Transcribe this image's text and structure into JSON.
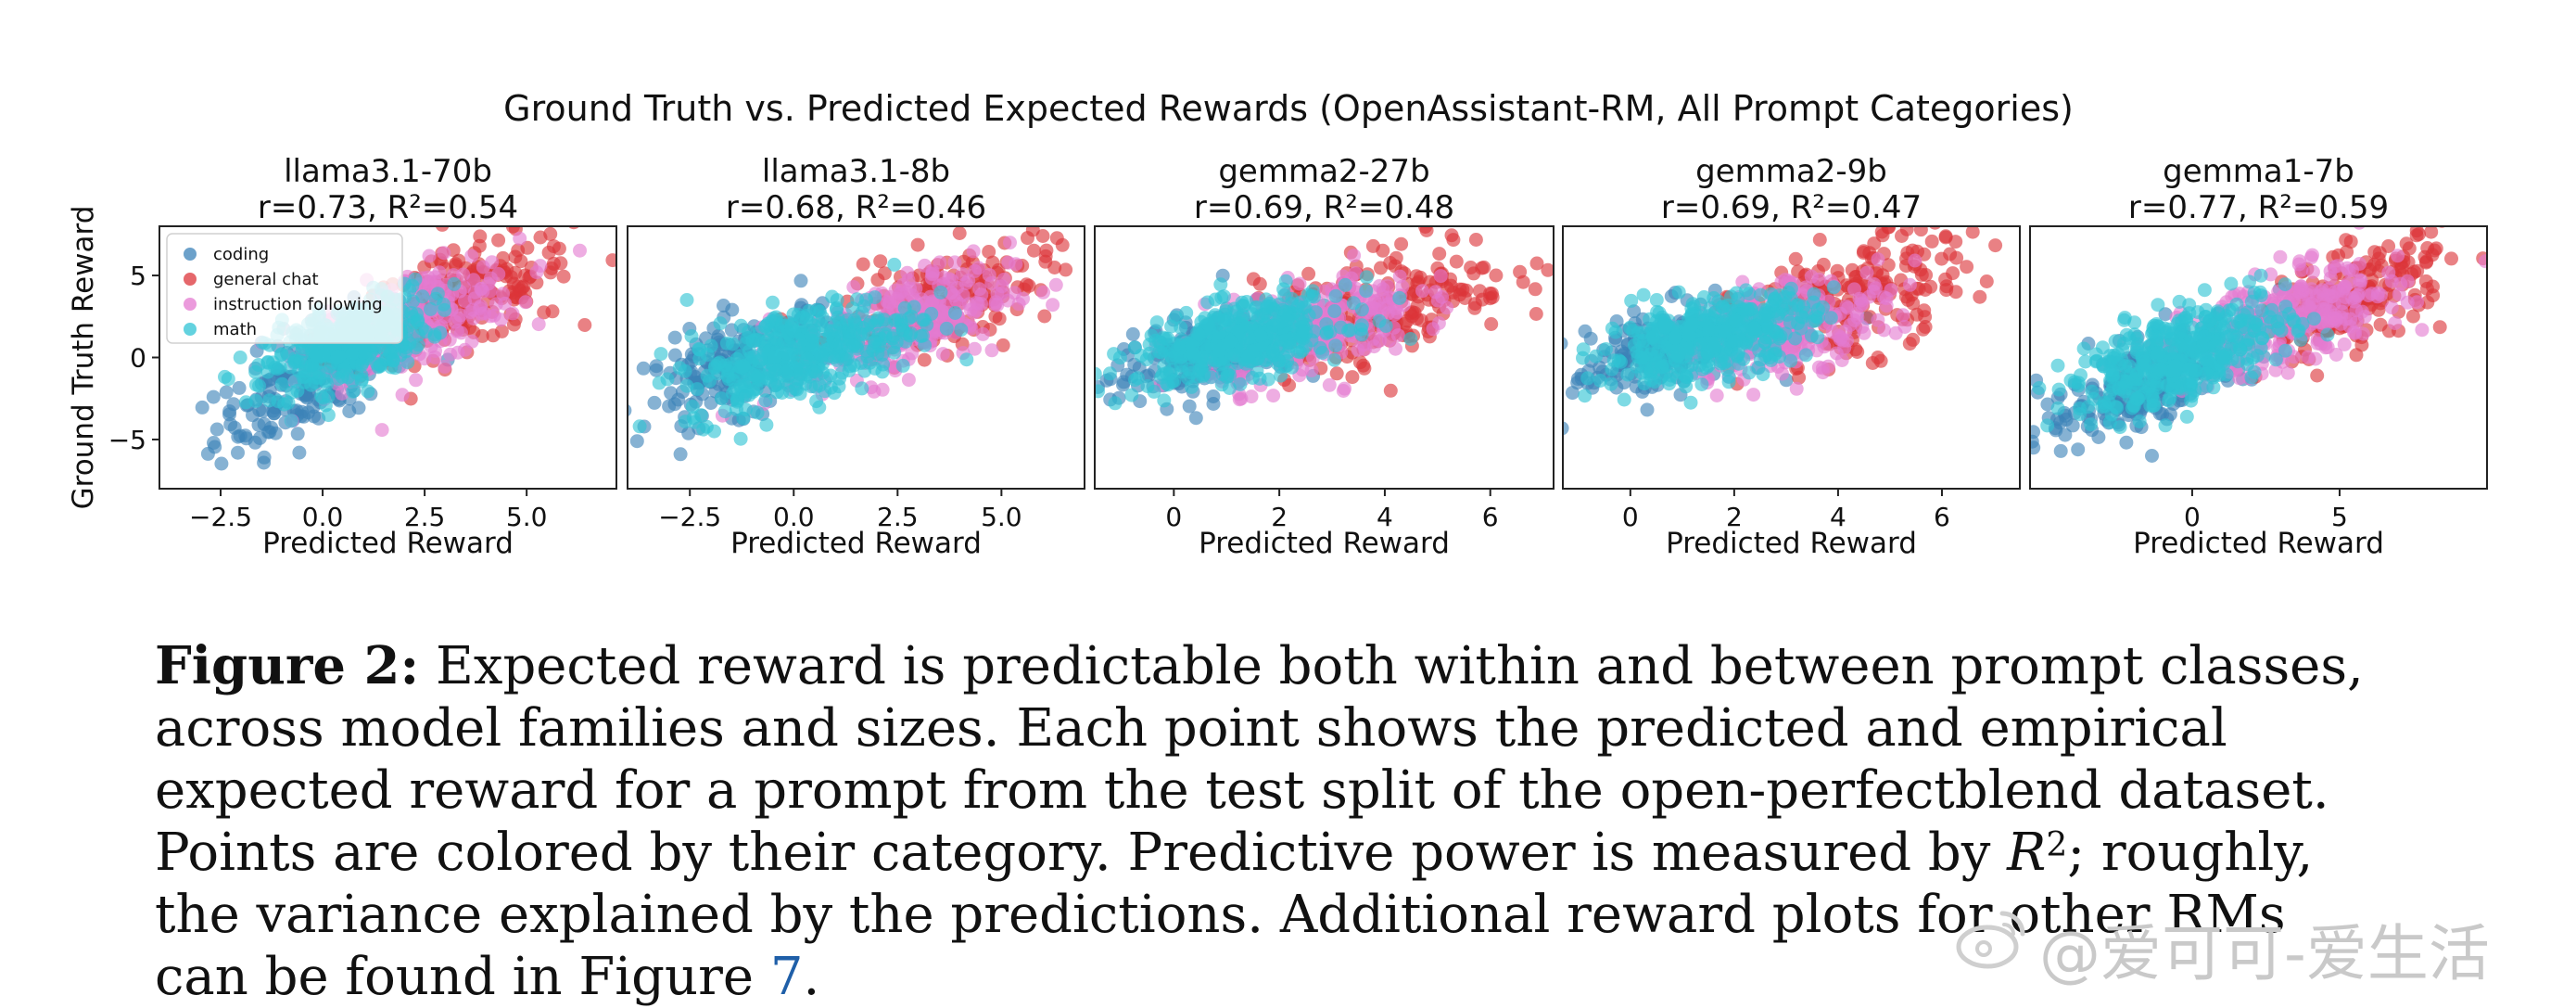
{
  "figure": {
    "suptitle": "Ground Truth vs. Predicted Expected Rewards (OpenAssistant-RM, All Prompt Categories)"
  },
  "caption": {
    "label": "Figure 2:",
    "part1": "Expected reward is predictable both within and between prompt classes, across model families and sizes. Each point shows the predicted and empirical expected reward for a prompt from the test split of the open-perfectblend dataset. Points are colored by their category. Predictive power is measured by",
    "math_symbol": "R",
    "math_sup": "2",
    "part2": "; roughly, the variance explained by the predictions. Additional reward plots for other RMs can be found in Figure",
    "figure_ref": "7",
    "end": "."
  },
  "watermark": {
    "text": "@爱可可-爱生活"
  },
  "chart_data": [
    {
      "type": "scatter",
      "model": "llama3.1-70b",
      "stats": "r=0.73, R²=0.54",
      "xlabel": "Predicted Reward",
      "ylabel": "Ground Truth Reward",
      "xlim": [
        -4,
        7.2
      ],
      "ylim": [
        -8,
        8
      ],
      "xticks": [
        -2.5,
        0.0,
        2.5,
        5.0
      ],
      "xtick_labels": [
        "−2.5",
        "0.0",
        "2.5",
        "5.0"
      ],
      "yticks": [
        -5,
        0,
        5
      ],
      "ytick_labels": [
        "−5",
        "0",
        "5"
      ],
      "legend": [
        "coding",
        "general chat",
        "instruction following",
        "math"
      ],
      "series": [
        {
          "name": "coding",
          "color": "#3b82b8",
          "center": [
            -0.2,
            -1.2
          ],
          "sx": 1.2,
          "sy": 2.2,
          "rho": 0.7,
          "n": 220
        },
        {
          "name": "general chat",
          "color": "#dc3439",
          "center": [
            3.5,
            3.6
          ],
          "sx": 1.3,
          "sy": 1.8,
          "rho": 0.55,
          "n": 200
        },
        {
          "name": "instruction following",
          "color": "#e47ad0",
          "center": [
            2.2,
            2.2
          ],
          "sx": 1.3,
          "sy": 1.8,
          "rho": 0.55,
          "n": 260
        },
        {
          "name": "math",
          "color": "#2fc3d4",
          "center": [
            0.6,
            0.8
          ],
          "sx": 1.0,
          "sy": 1.5,
          "rho": 0.55,
          "n": 380
        }
      ]
    },
    {
      "type": "scatter",
      "model": "llama3.1-8b",
      "stats": "r=0.68, R²=0.46",
      "xlabel": "Predicted Reward",
      "xlim": [
        -4,
        7.0
      ],
      "ylim": [
        -8,
        8
      ],
      "xticks": [
        -2.5,
        0.0,
        2.5,
        5.0
      ],
      "xtick_labels": [
        "−2.5",
        "0.0",
        "2.5",
        "5.0"
      ],
      "series": [
        {
          "name": "coding",
          "color": "#3b82b8",
          "center": [
            -1.2,
            -0.3
          ],
          "sx": 1.2,
          "sy": 1.8,
          "rho": 0.6,
          "n": 200
        },
        {
          "name": "general chat",
          "color": "#dc3439",
          "center": [
            3.6,
            3.4
          ],
          "sx": 1.3,
          "sy": 1.8,
          "rho": 0.55,
          "n": 200
        },
        {
          "name": "instruction following",
          "color": "#e47ad0",
          "center": [
            2.6,
            2.0
          ],
          "sx": 1.3,
          "sy": 1.8,
          "rho": 0.55,
          "n": 260
        },
        {
          "name": "math",
          "color": "#2fc3d4",
          "center": [
            0.2,
            0.3
          ],
          "sx": 1.4,
          "sy": 1.7,
          "rho": 0.55,
          "n": 400
        }
      ]
    },
    {
      "type": "scatter",
      "model": "gemma2-27b",
      "stats": "r=0.69, R²=0.48",
      "xlabel": "Predicted Reward",
      "xlim": [
        -1.5,
        7.2
      ],
      "ylim": [
        -8,
        8
      ],
      "xticks": [
        0,
        2,
        4,
        6
      ],
      "xtick_labels": [
        "0",
        "2",
        "4",
        "6"
      ],
      "series": [
        {
          "name": "coding",
          "color": "#3b82b8",
          "center": [
            0.6,
            0.2
          ],
          "sx": 0.9,
          "sy": 1.5,
          "rho": 0.55,
          "n": 200
        },
        {
          "name": "general chat",
          "color": "#dc3439",
          "center": [
            4.0,
            3.2
          ],
          "sx": 1.2,
          "sy": 2.0,
          "rho": 0.5,
          "n": 220
        },
        {
          "name": "instruction following",
          "color": "#e47ad0",
          "center": [
            2.6,
            1.8
          ],
          "sx": 1.0,
          "sy": 1.6,
          "rho": 0.5,
          "n": 260
        },
        {
          "name": "math",
          "color": "#2fc3d4",
          "center": [
            1.3,
            1.0
          ],
          "sx": 1.0,
          "sy": 1.3,
          "rho": 0.5,
          "n": 420
        }
      ]
    },
    {
      "type": "scatter",
      "model": "gemma2-9b",
      "stats": "r=0.69, R²=0.47",
      "xlabel": "Predicted Reward",
      "xlim": [
        -1.3,
        7.5
      ],
      "ylim": [
        -8,
        8
      ],
      "xticks": [
        0,
        2,
        4,
        6
      ],
      "xtick_labels": [
        "0",
        "2",
        "4",
        "6"
      ],
      "series": [
        {
          "name": "coding",
          "color": "#3b82b8",
          "center": [
            0.7,
            0.5
          ],
          "sx": 0.9,
          "sy": 1.4,
          "rho": 0.5,
          "n": 200
        },
        {
          "name": "general chat",
          "color": "#dc3439",
          "center": [
            4.2,
            3.4
          ],
          "sx": 1.1,
          "sy": 2.0,
          "rho": 0.5,
          "n": 220
        },
        {
          "name": "instruction following",
          "color": "#e47ad0",
          "center": [
            3.0,
            2.0
          ],
          "sx": 1.0,
          "sy": 1.6,
          "rho": 0.5,
          "n": 260
        },
        {
          "name": "math",
          "color": "#2fc3d4",
          "center": [
            1.5,
            1.2
          ],
          "sx": 1.0,
          "sy": 1.3,
          "rho": 0.5,
          "n": 420
        }
      ]
    },
    {
      "type": "scatter",
      "model": "gemma1-7b",
      "stats": "r=0.77, R²=0.59",
      "xlabel": "Predicted Reward",
      "xlim": [
        -5.5,
        10
      ],
      "ylim": [
        -8,
        8
      ],
      "xticks": [
        0,
        5
      ],
      "xtick_labels": [
        "0",
        "5"
      ],
      "series": [
        {
          "name": "coding",
          "color": "#3b82b8",
          "center": [
            -1.5,
            -1.5
          ],
          "sx": 1.8,
          "sy": 1.9,
          "rho": 0.7,
          "n": 220
        },
        {
          "name": "general chat",
          "color": "#dc3439",
          "center": [
            5.5,
            3.6
          ],
          "sx": 1.6,
          "sy": 1.7,
          "rho": 0.55,
          "n": 200
        },
        {
          "name": "instruction following",
          "color": "#e47ad0",
          "center": [
            3.5,
            2.4
          ],
          "sx": 1.8,
          "sy": 1.7,
          "rho": 0.55,
          "n": 260
        },
        {
          "name": "math",
          "color": "#2fc3d4",
          "center": [
            -0.3,
            0.2
          ],
          "sx": 1.8,
          "sy": 1.7,
          "rho": 0.6,
          "n": 420
        }
      ]
    }
  ]
}
